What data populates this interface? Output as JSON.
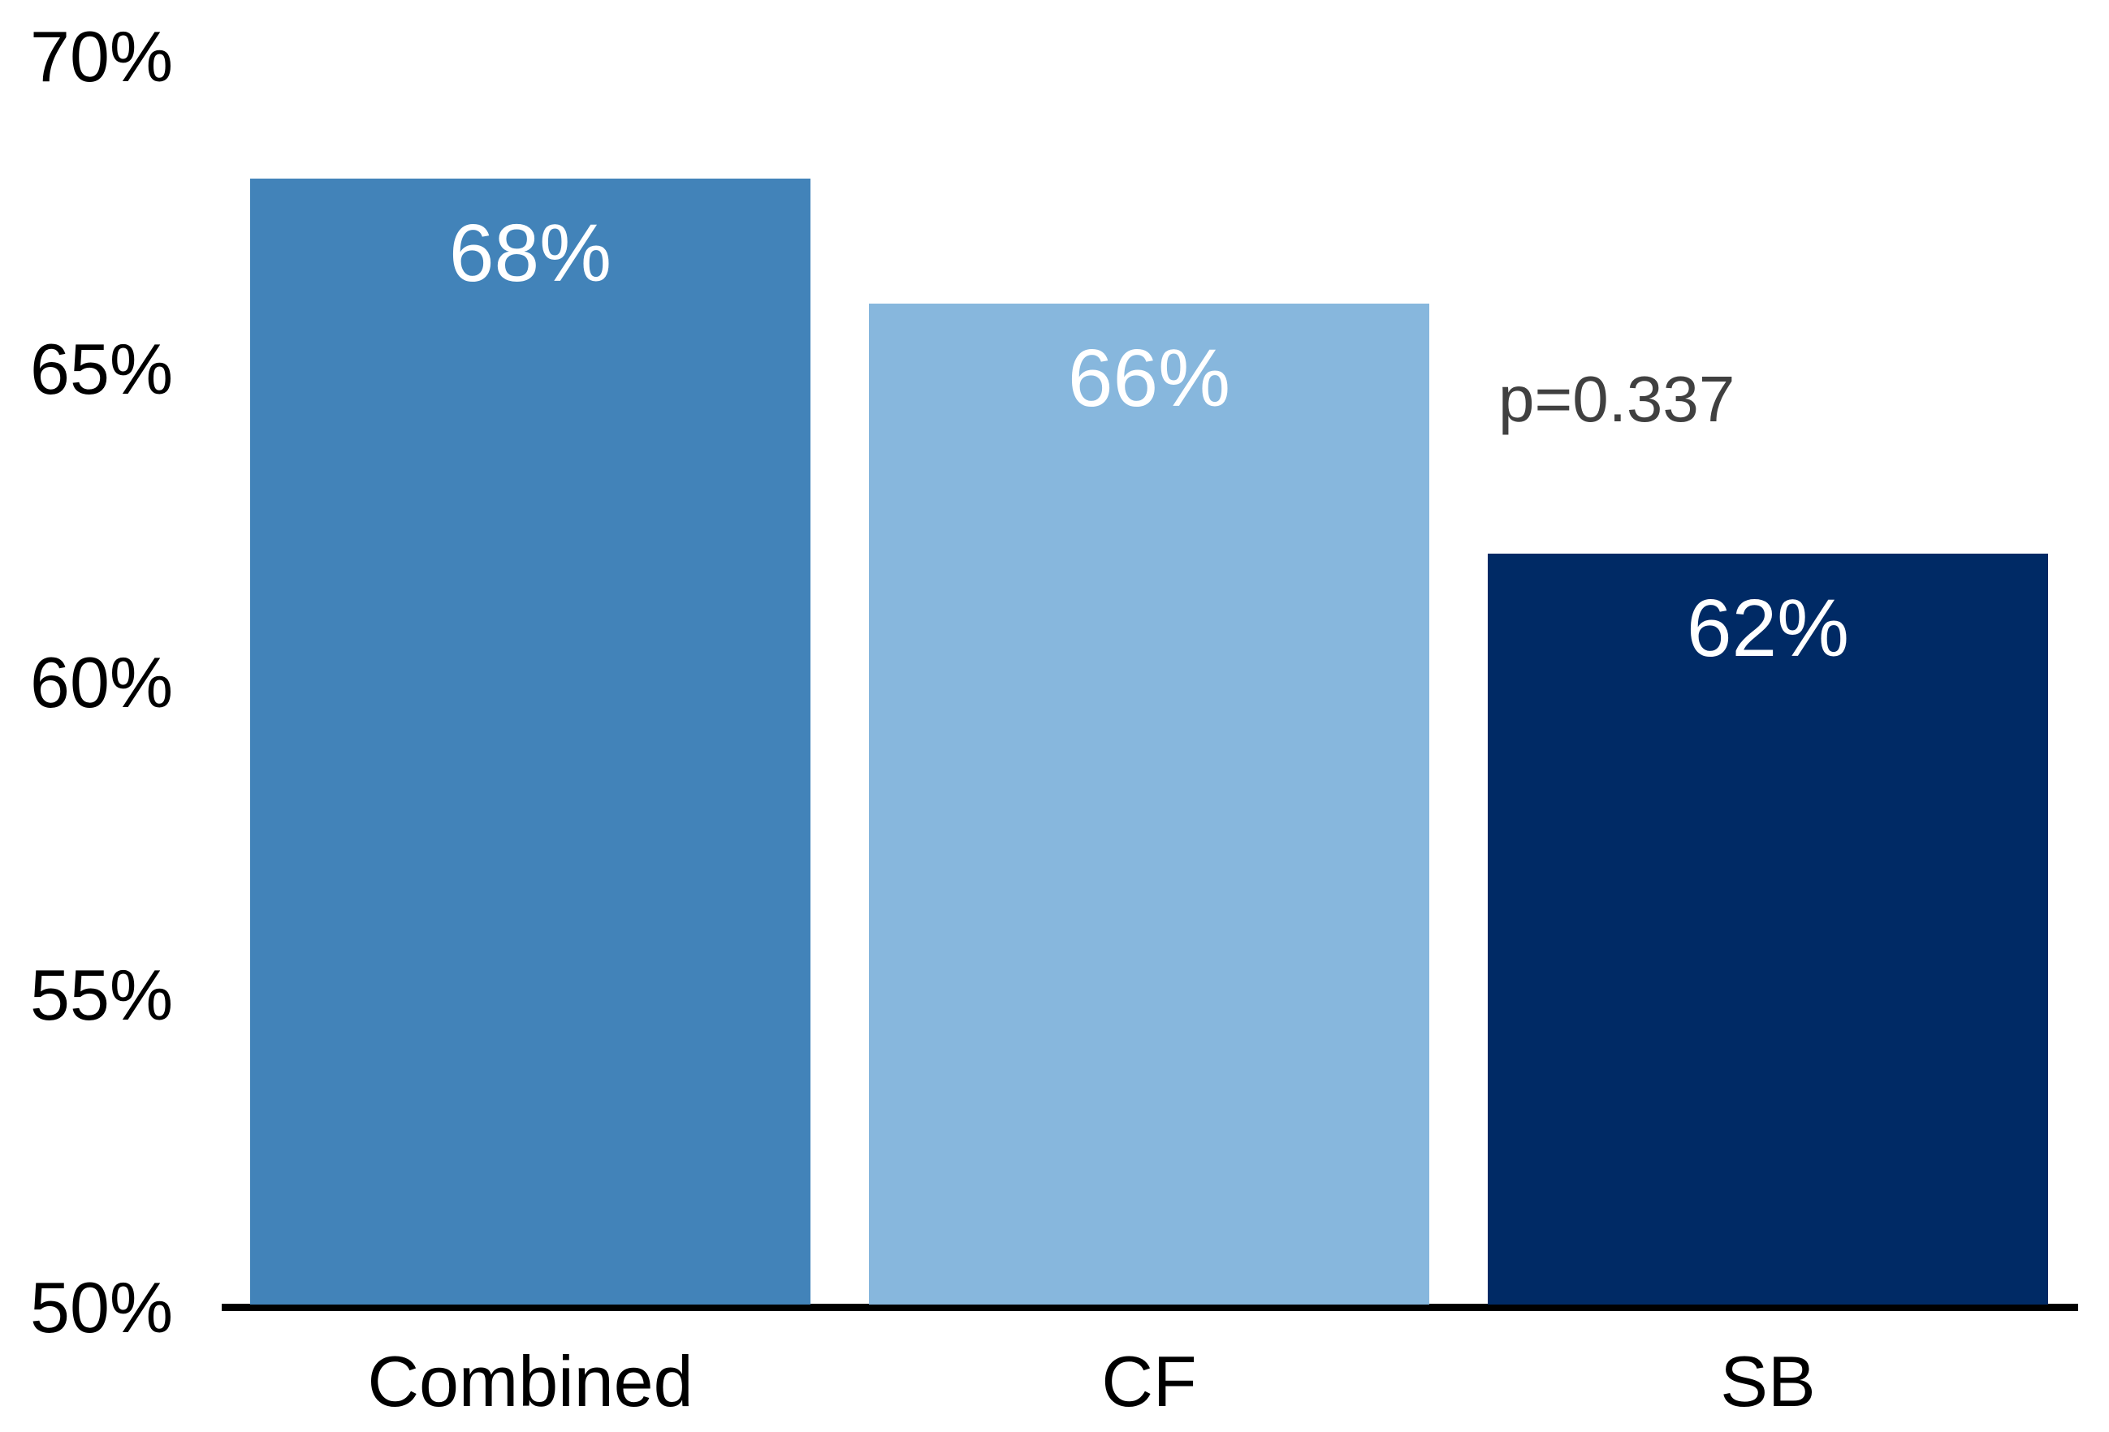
{
  "chart_data": {
    "type": "bar",
    "title": "",
    "xlabel": "",
    "ylabel": "",
    "categories": [
      "Combined",
      "CF",
      "SB"
    ],
    "values": [
      68,
      66,
      62
    ],
    "bar_labels": [
      "68%",
      "66%",
      "62%"
    ],
    "y_ticks": [
      {
        "label": "70%",
        "value": 70
      },
      {
        "label": "65%",
        "value": 65
      },
      {
        "label": "60%",
        "value": 60
      },
      {
        "label": "55%",
        "value": 55
      },
      {
        "label": "50%",
        "value": 50
      }
    ],
    "ylim": [
      50,
      70
    ],
    "grid": false,
    "legend": false,
    "annotation": {
      "text": "p=0.337",
      "target_category": "SB"
    },
    "colors": {
      "bars": [
        "#4283B9",
        "#87B7DD",
        "#002A65"
      ],
      "bar_label_text": "#FFFFFF",
      "tick_label_text": "#000000",
      "category_label_text": "#000000",
      "annotation_text": "#404040",
      "axis_line": "#000000",
      "background": "#FFFFFF"
    }
  }
}
